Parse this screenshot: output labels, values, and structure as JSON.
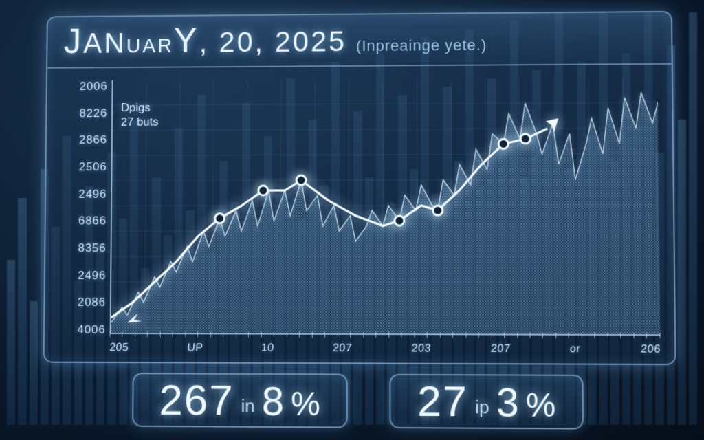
{
  "header": {
    "title_pre": "J",
    "title_mid": "ANuar",
    "title_y": "Y",
    "title_rest": ", 20, 2025",
    "subtitle": "(Inpreainge yete.)"
  },
  "chart": {
    "type": "area-line",
    "annot_line1": "Dpigs",
    "annot_line2": "27 buts",
    "y_ticks": [
      "2006",
      "8226",
      "2866",
      "2506",
      "2496",
      "6866",
      "8356",
      "2496",
      "2086",
      "4006"
    ],
    "x_ticks": [
      "205",
      "UP",
      "10",
      "207",
      "203",
      "207",
      "or",
      "206"
    ],
    "minor_tick_count": 44,
    "ylim": [
      0,
      100
    ],
    "background_color": "#0f2640",
    "grid_color": "rgba(140,190,230,0.12)",
    "line_color": "#f4fbff",
    "line_width": 3.2,
    "glow_color": "rgba(200,235,255,0.9)",
    "marker_radius": 7,
    "marker_points_pct": [
      [
        20,
        55
      ],
      [
        28,
        44
      ],
      [
        35,
        40
      ],
      [
        53,
        56
      ],
      [
        60,
        52
      ],
      [
        72,
        26
      ],
      [
        76,
        24
      ]
    ],
    "trend_points_pct": [
      [
        0,
        94
      ],
      [
        4,
        88
      ],
      [
        8,
        80
      ],
      [
        12,
        72
      ],
      [
        16,
        62
      ],
      [
        20,
        55
      ],
      [
        24,
        50
      ],
      [
        28,
        44
      ],
      [
        32,
        44
      ],
      [
        35,
        40
      ],
      [
        40,
        48
      ],
      [
        45,
        54
      ],
      [
        50,
        58
      ],
      [
        53,
        56
      ],
      [
        57,
        50
      ],
      [
        60,
        52
      ],
      [
        64,
        44
      ],
      [
        68,
        34
      ],
      [
        72,
        26
      ],
      [
        76,
        24
      ],
      [
        80,
        20
      ]
    ],
    "noisy_points_pct": [
      [
        0,
        96
      ],
      [
        2,
        90
      ],
      [
        3,
        93
      ],
      [
        5,
        84
      ],
      [
        6,
        88
      ],
      [
        8,
        78
      ],
      [
        9,
        82
      ],
      [
        11,
        72
      ],
      [
        12,
        76
      ],
      [
        14,
        66
      ],
      [
        15,
        72
      ],
      [
        17,
        60
      ],
      [
        18,
        66
      ],
      [
        20,
        55
      ],
      [
        21,
        62
      ],
      [
        23,
        52
      ],
      [
        24,
        60
      ],
      [
        26,
        48
      ],
      [
        27,
        58
      ],
      [
        29,
        44
      ],
      [
        30,
        56
      ],
      [
        32,
        44
      ],
      [
        33,
        54
      ],
      [
        35,
        40
      ],
      [
        36,
        52
      ],
      [
        38,
        46
      ],
      [
        39,
        58
      ],
      [
        41,
        50
      ],
      [
        42,
        60
      ],
      [
        44,
        54
      ],
      [
        45,
        64
      ],
      [
        47,
        58
      ],
      [
        48,
        52
      ],
      [
        50,
        58
      ],
      [
        51,
        50
      ],
      [
        53,
        56
      ],
      [
        54,
        46
      ],
      [
        56,
        52
      ],
      [
        57,
        42
      ],
      [
        59,
        50
      ],
      [
        60,
        52
      ],
      [
        61,
        40
      ],
      [
        63,
        46
      ],
      [
        64,
        34
      ],
      [
        66,
        42
      ],
      [
        67,
        28
      ],
      [
        69,
        36
      ],
      [
        70,
        22
      ],
      [
        72,
        26
      ],
      [
        73,
        14
      ],
      [
        75,
        24
      ],
      [
        76,
        10
      ],
      [
        78,
        22
      ],
      [
        79,
        30
      ],
      [
        81,
        18
      ],
      [
        82,
        34
      ],
      [
        84,
        22
      ],
      [
        85,
        40
      ],
      [
        87,
        26
      ],
      [
        88,
        16
      ],
      [
        90,
        30
      ],
      [
        91,
        12
      ],
      [
        93,
        26
      ],
      [
        94,
        8
      ],
      [
        96,
        20
      ],
      [
        97,
        6
      ],
      [
        99,
        18
      ],
      [
        100,
        10
      ]
    ],
    "arrow_tip_pct": [
      82,
      16
    ],
    "tail_arrow_pct": [
      3,
      96
    ]
  },
  "stats": {
    "left": {
      "n1": "267",
      "sm": "in",
      "n2": "8",
      "pct": "%"
    },
    "right": {
      "n1": "27",
      "sm": "ip",
      "n2": "3",
      "pct": "%"
    }
  },
  "style": {
    "title_fontsize": 42,
    "subtitle_fontsize": 22,
    "ytick_fontsize": 17,
    "xtick_fontsize": 16,
    "chip_big_fontsize": 62,
    "accent_glow": "#aee3ff",
    "panel_border": "rgba(180,220,255,0.55)"
  }
}
